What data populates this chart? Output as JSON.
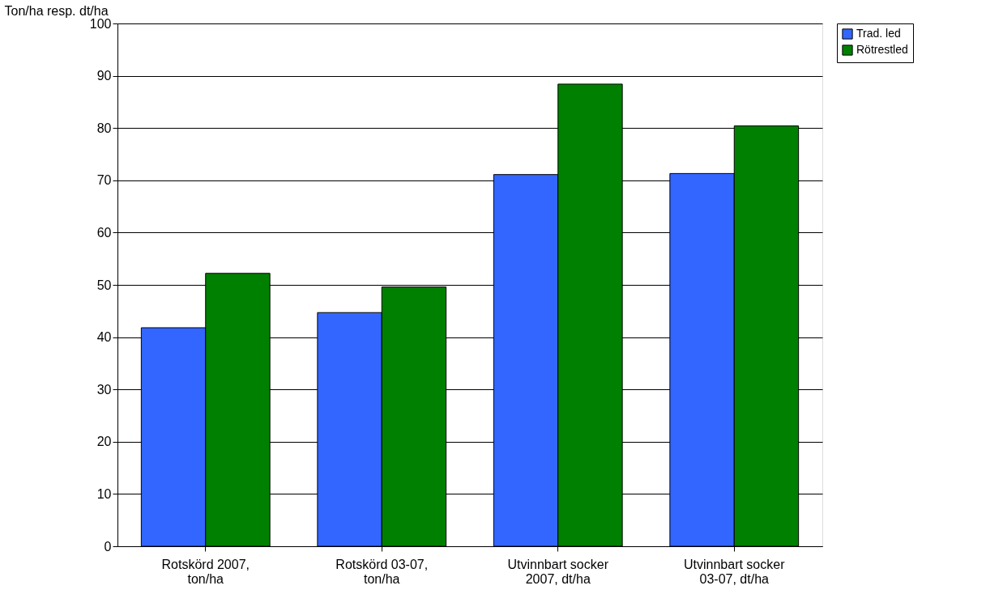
{
  "chart_data": {
    "type": "bar",
    "ylabel": "Ton/ha resp. dt/ha",
    "categories": [
      "Rotskörd 2007, ton/ha",
      "Rotskörd 03-07, ton/ha",
      "Utvinnbart socker 2007, dt/ha",
      "Utvinnbart socker 03-07, dt/ha"
    ],
    "series": [
      {
        "name": "Trad. led",
        "color": "#3366ff",
        "values": [
          41.8,
          44.7,
          71.1,
          71.3
        ]
      },
      {
        "name": "Rötrestled",
        "color": "#008000",
        "values": [
          52.2,
          49.6,
          88.4,
          80.4
        ]
      }
    ],
    "ylim": [
      0,
      100
    ],
    "yticks": [
      0,
      10,
      20,
      30,
      40,
      50,
      60,
      70,
      80,
      90,
      100
    ],
    "grid": "y",
    "legend": "right"
  }
}
